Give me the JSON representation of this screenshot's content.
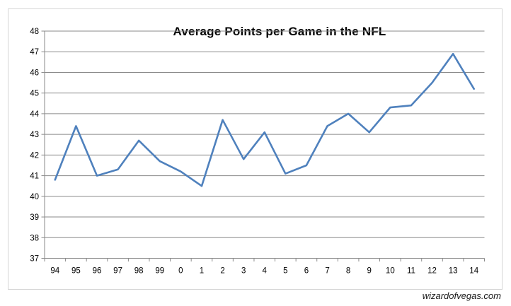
{
  "chart_data": {
    "type": "line",
    "title": "Average Points per Game in the NFL",
    "categories": [
      "94",
      "95",
      "96",
      "97",
      "98",
      "99",
      "0",
      "1",
      "2",
      "3",
      "4",
      "5",
      "6",
      "7",
      "8",
      "9",
      "10",
      "11",
      "12",
      "13",
      "14"
    ],
    "series": [
      {
        "name": "Average points per game",
        "values": [
          40.8,
          43.4,
          41.0,
          41.3,
          42.7,
          41.7,
          41.2,
          40.5,
          43.7,
          41.8,
          43.1,
          41.1,
          41.5,
          43.4,
          44.0,
          43.1,
          44.3,
          44.4,
          45.5,
          46.9,
          45.2
        ]
      }
    ],
    "xlabel": "",
    "ylabel": "",
    "ylim": [
      37,
      48
    ],
    "ytick_labels": [
      "37",
      "38",
      "39",
      "40",
      "41",
      "42",
      "43",
      "44",
      "45",
      "46",
      "47",
      "48"
    ],
    "grid": "horizontal",
    "legend": "none",
    "line_color": "#4F81BD",
    "gridline_color": "#8a8a8a",
    "axis_color": "#8a8a8a",
    "border_color": "#d6d6d6",
    "label_color": "#000000"
  },
  "watermark": "wizardofvegas.com"
}
